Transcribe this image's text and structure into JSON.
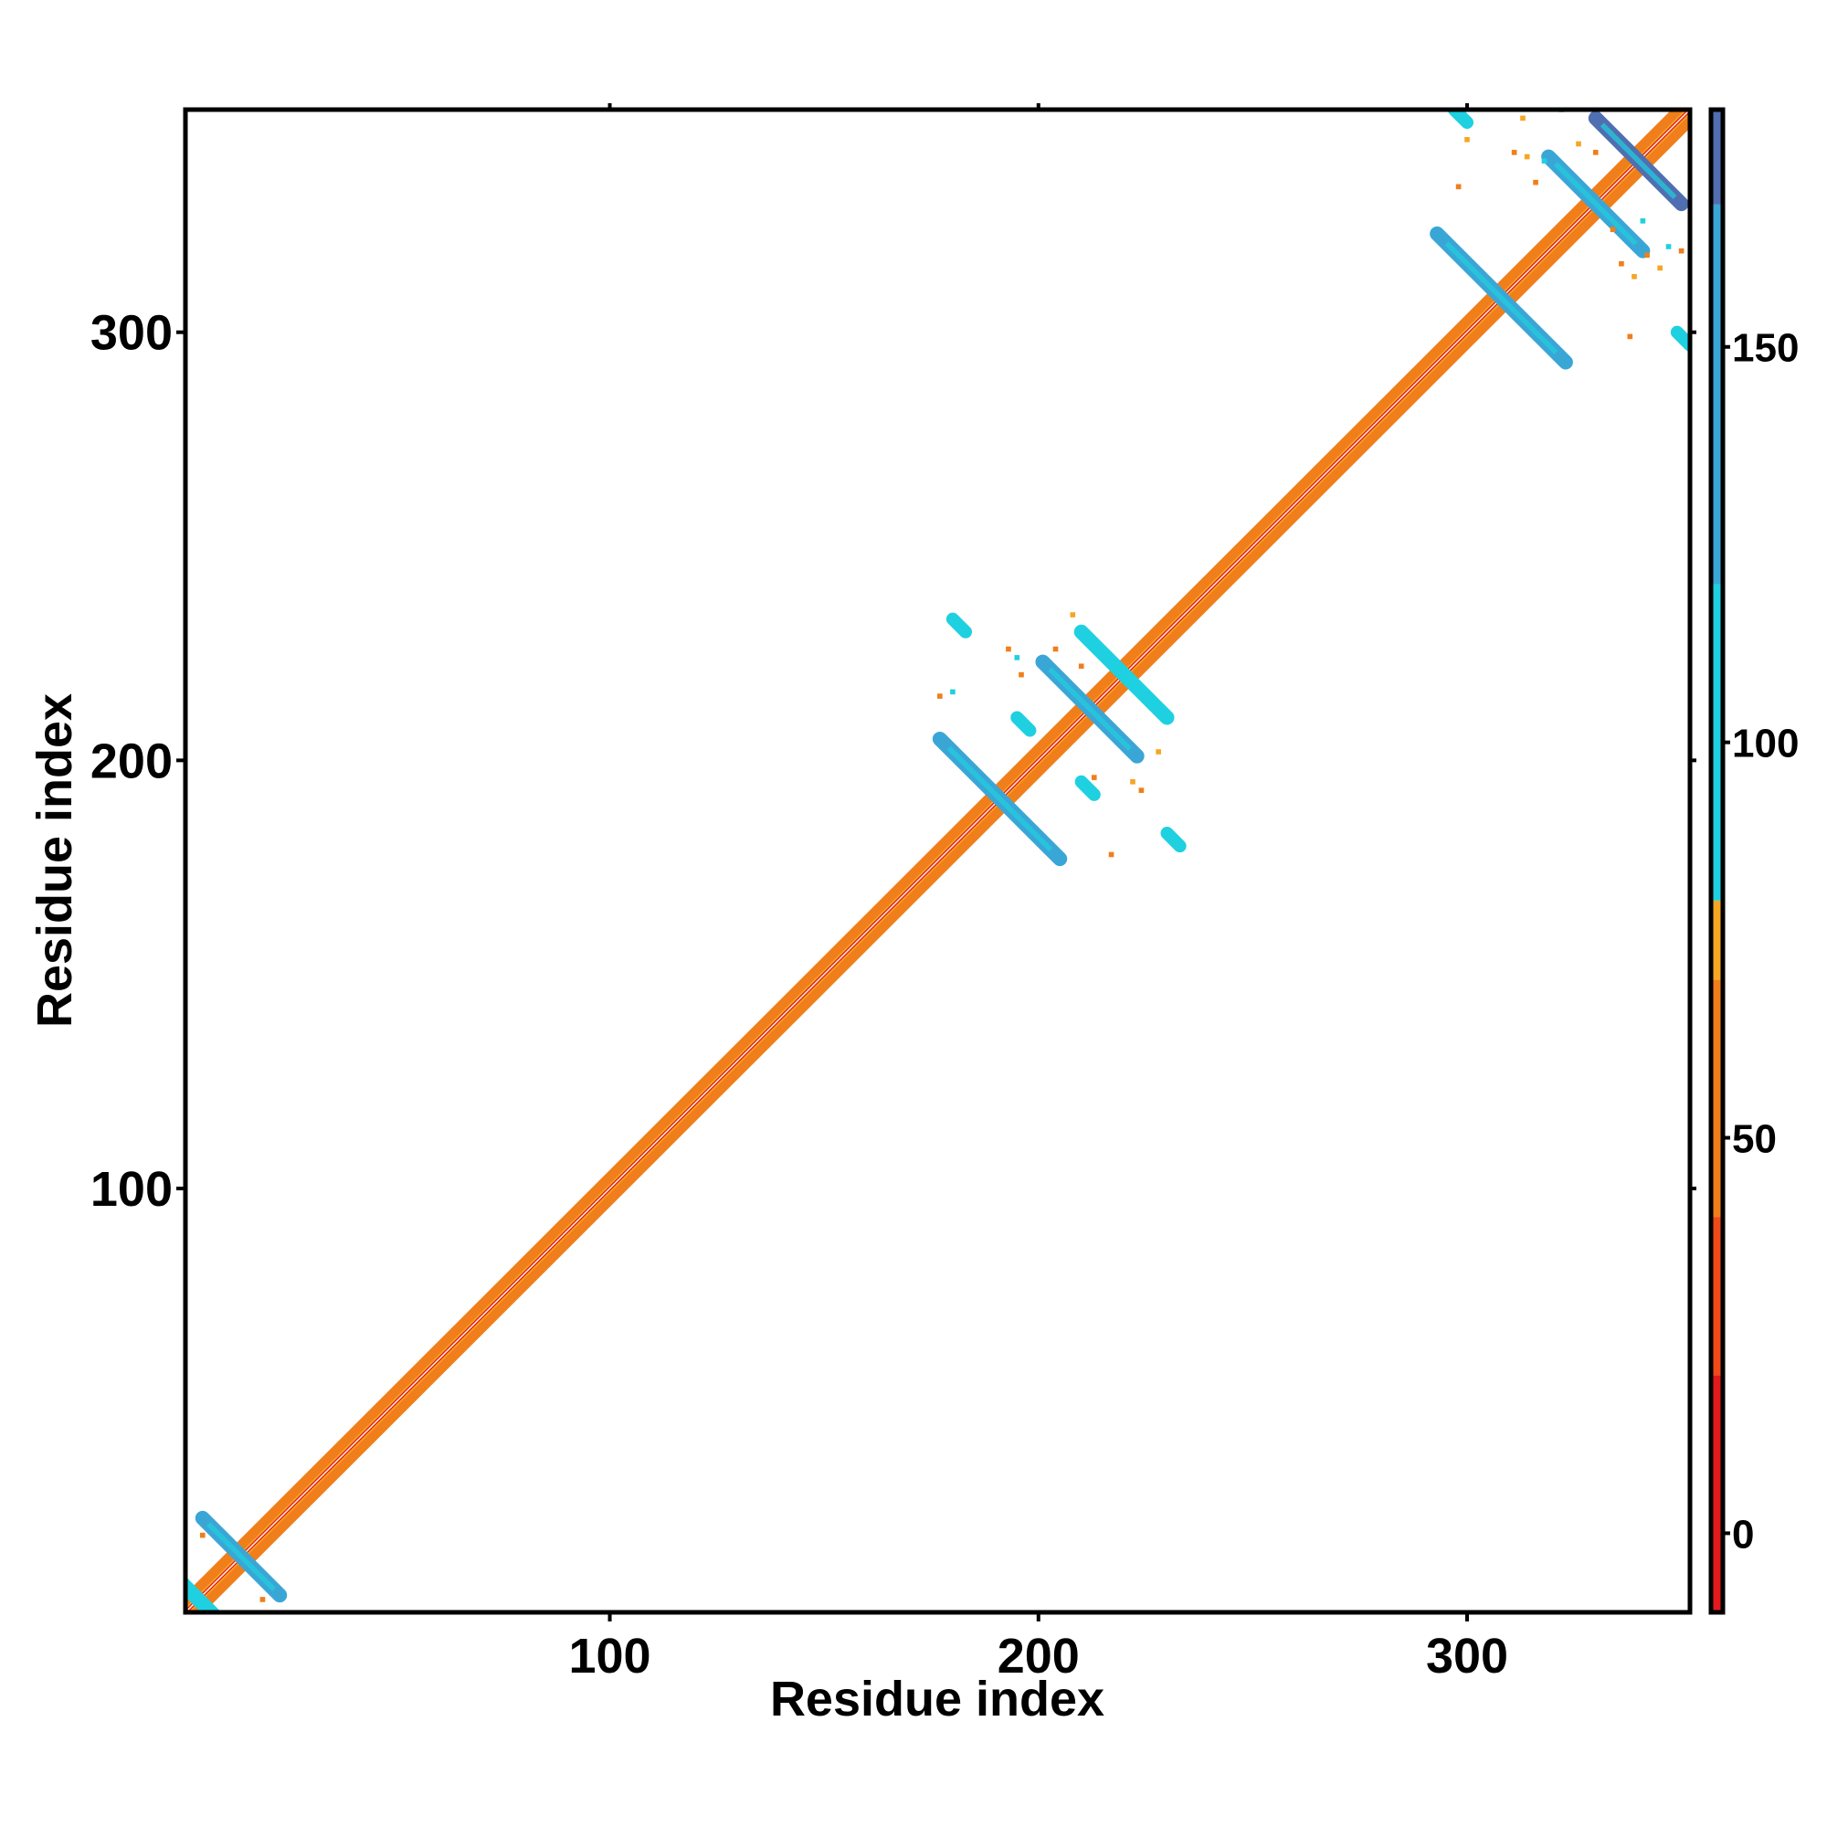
{
  "chart_data": {
    "type": "heatmap",
    "title": "",
    "xlabel": "Residue index",
    "ylabel": "Residue index",
    "xlim": [
      1,
      352
    ],
    "ylim": [
      1,
      352
    ],
    "x_ticks": [
      100,
      200,
      300
    ],
    "x_tick_labels": [
      "100",
      "200",
      "300"
    ],
    "y_ticks": [
      100,
      200,
      300
    ],
    "y_tick_labels": [
      "100",
      "200",
      "300"
    ],
    "top_ticks": [
      100,
      200,
      300
    ],
    "right_ticks": [
      100,
      200,
      300
    ],
    "grid": false,
    "colorbar": {
      "range": [
        -10,
        180
      ],
      "ticks": [
        0,
        50,
        100,
        150
      ],
      "tick_labels": [
        "0",
        "50",
        "100",
        "150"
      ],
      "bands": [
        {
          "from": -10,
          "to": 20,
          "color": "#E31A1C"
        },
        {
          "from": 20,
          "to": 40,
          "color": "#F04A18"
        },
        {
          "from": 40,
          "to": 70,
          "color": "#F07E1A"
        },
        {
          "from": 70,
          "to": 80,
          "color": "#F5A623"
        },
        {
          "from": 80,
          "to": 120,
          "color": "#1FD0E0"
        },
        {
          "from": 120,
          "to": 168,
          "color": "#3AA6D6"
        },
        {
          "from": 168,
          "to": 180,
          "color": "#4F6FB0"
        }
      ]
    },
    "diagonal": {
      "from": 1,
      "to": 352,
      "halfwidth": 3,
      "inner_color": "#E31A1C",
      "outer_color": "#F07E1A",
      "accent_color": "#F5A623"
    },
    "crosses": [
      {
        "center": [
          14,
          14
        ],
        "arm": 9,
        "color": "#3AA6D6"
      },
      {
        "center": [
          4,
          4
        ],
        "arm": 4,
        "color": "#1FD0E0"
      },
      {
        "center": [
          191,
          191
        ],
        "arm": 14,
        "color": "#3AA6D6"
      },
      {
        "center": [
          212,
          212
        ],
        "arm": 11,
        "color": "#3AA6D6"
      },
      {
        "center": [
          220,
          220
        ],
        "arm": 10,
        "color": "#1FD0E0"
      },
      {
        "center": [
          308,
          308
        ],
        "arm": 15,
        "color": "#3AA6D6"
      },
      {
        "center": [
          330,
          330
        ],
        "arm": 11,
        "color": "#3AA6D6"
      },
      {
        "center": [
          340,
          340
        ],
        "arm": 10,
        "color": "#4F6FB0"
      }
    ],
    "segments": [
      {
        "from": [
          180,
          233
        ],
        "to": [
          183,
          230
        ],
        "color": "#1FD0E0"
      },
      {
        "from": [
          230,
          183
        ],
        "to": [
          233,
          180
        ],
        "color": "#1FD0E0"
      },
      {
        "from": [
          297,
          352
        ],
        "to": [
          300,
          349
        ],
        "color": "#1FD0E0"
      },
      {
        "from": [
          349,
          300
        ],
        "to": [
          352,
          297
        ],
        "color": "#1FD0E0"
      },
      {
        "from": [
          210,
          195
        ],
        "to": [
          213,
          192
        ],
        "color": "#1FD0E0"
      },
      {
        "from": [
          195,
          210
        ],
        "to": [
          198,
          207
        ],
        "color": "#1FD0E0"
      }
    ],
    "scatter": [
      {
        "x": 193,
        "y": 226,
        "color": "#F07E1A"
      },
      {
        "x": 195,
        "y": 224,
        "color": "#1FD0E0"
      },
      {
        "x": 204,
        "y": 226,
        "color": "#F07E1A"
      },
      {
        "x": 208,
        "y": 234,
        "color": "#F5A623"
      },
      {
        "x": 210,
        "y": 222,
        "color": "#F07E1A"
      },
      {
        "x": 213,
        "y": 196,
        "color": "#F07E1A"
      },
      {
        "x": 217,
        "y": 178,
        "color": "#F07E1A"
      },
      {
        "x": 222,
        "y": 195,
        "color": "#F5A623"
      },
      {
        "x": 224,
        "y": 193,
        "color": "#F07E1A"
      },
      {
        "x": 228,
        "y": 202,
        "color": "#F5A623"
      },
      {
        "x": 180,
        "y": 216,
        "color": "#1FD0E0"
      },
      {
        "x": 177,
        "y": 215,
        "color": "#F07E1A"
      },
      {
        "x": 196,
        "y": 220,
        "color": "#F07E1A"
      },
      {
        "x": 313,
        "y": 350,
        "color": "#F5A623"
      },
      {
        "x": 311,
        "y": 342,
        "color": "#F07E1A"
      },
      {
        "x": 314,
        "y": 341,
        "color": "#F5A623"
      },
      {
        "x": 316,
        "y": 335,
        "color": "#F07E1A"
      },
      {
        "x": 318,
        "y": 340,
        "color": "#1FD0E0"
      },
      {
        "x": 322,
        "y": 352,
        "color": "#1FD0E0"
      },
      {
        "x": 326,
        "y": 344,
        "color": "#F5A623"
      },
      {
        "x": 330,
        "y": 342,
        "color": "#F07E1A"
      },
      {
        "x": 300,
        "y": 345,
        "color": "#F5A623"
      },
      {
        "x": 298,
        "y": 334,
        "color": "#F07E1A"
      },
      {
        "x": 336,
        "y": 316,
        "color": "#F07E1A"
      },
      {
        "x": 339,
        "y": 313,
        "color": "#F5A623"
      },
      {
        "x": 342,
        "y": 318,
        "color": "#F07E1A"
      },
      {
        "x": 345,
        "y": 315,
        "color": "#F5A623"
      },
      {
        "x": 347,
        "y": 320,
        "color": "#1FD0E0"
      },
      {
        "x": 334,
        "y": 324,
        "color": "#F07E1A"
      },
      {
        "x": 341,
        "y": 326,
        "color": "#1FD0E0"
      },
      {
        "x": 350,
        "y": 319,
        "color": "#F07E1A"
      },
      {
        "x": 338,
        "y": 299,
        "color": "#F07E1A"
      },
      {
        "x": 5,
        "y": 19,
        "color": "#F07E1A"
      },
      {
        "x": 19,
        "y": 4,
        "color": "#F07E1A"
      }
    ]
  }
}
